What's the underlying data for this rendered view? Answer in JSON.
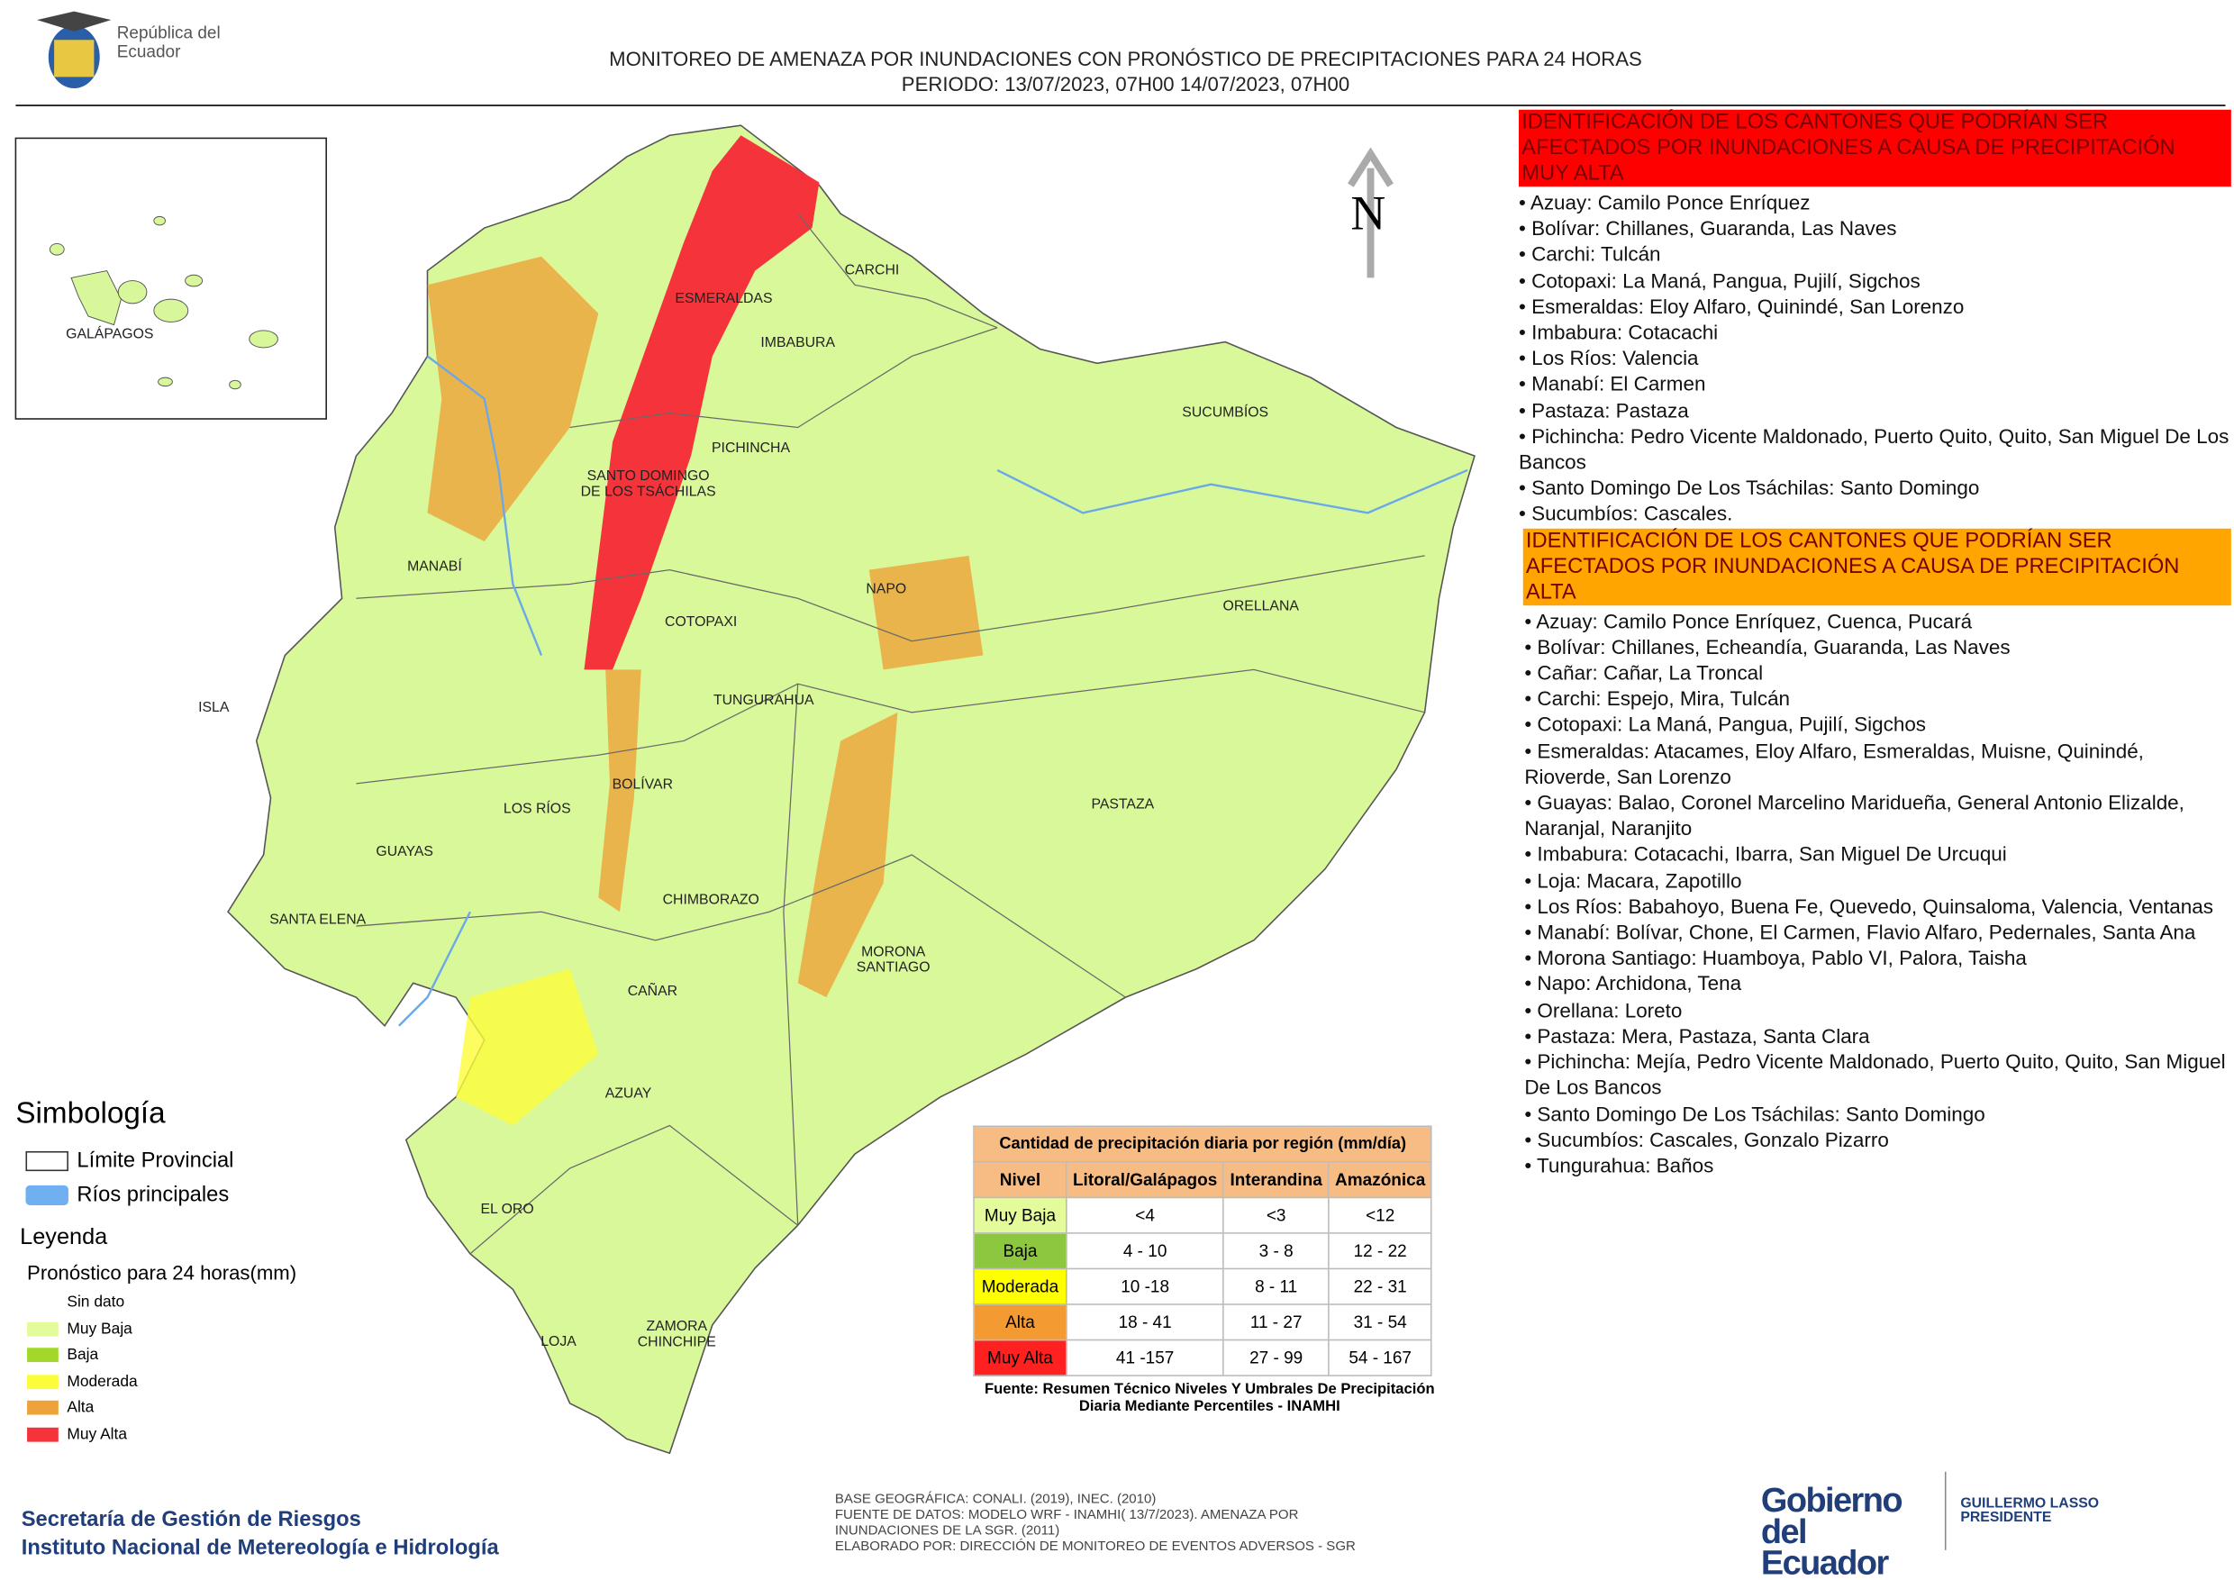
{
  "header": {
    "logo_text": "República del Ecuador",
    "title": "MONITOREO DE AMENAZA POR INUNDACIONES  CON PRONÓSTICO DE  PRECIPITACIONES PARA 24 HORAS",
    "period": "PERIODO: 13/07/2023, 07H00 14/07/2023, 07H00"
  },
  "map": {
    "north": "N",
    "inset_label": "GALÁPAGOS",
    "provinces": [
      "CARCHI",
      "ESMERALDAS",
      "IMBABURA",
      "SUCUMBÍOS",
      "PICHINCHA",
      "SANTO DOMINGO DE LOS TSÁCHILAS",
      "MANABÍ",
      "NAPO",
      "ORELLANA",
      "COTOPAXI",
      "ISLA",
      "TUNGURAHUA",
      "BOLÍVAR",
      "LOS RÍOS",
      "PASTAZA",
      "GUAYAS",
      "CHIMBORAZO",
      "SANTA ELENA",
      "MORONA SANTIAGO",
      "CAÑAR",
      "AZUAY",
      "EL ORO",
      "ZAMORA CHINCHIPE",
      "LOJA"
    ]
  },
  "legend": {
    "symbology_title": "Simbología",
    "symbols": [
      "Límite Provincial",
      "Ríos principales"
    ],
    "legend_title": "Leyenda",
    "subtitle": "Pronóstico para 24 horas(mm)",
    "items": [
      {
        "label": "Sin dato",
        "color": "#ffffff"
      },
      {
        "label": "Muy Baja",
        "color": "#e4fb9c"
      },
      {
        "label": "Baja",
        "color": "#a3d82b"
      },
      {
        "label": "Moderada",
        "color": "#fcfc3a"
      },
      {
        "label": "Alta",
        "color": "#eda33a"
      },
      {
        "label": "Muy Alta",
        "color": "#f5333a"
      }
    ]
  },
  "table": {
    "title": "Cantidad de precipitación diaria por región (mm/día)",
    "header": [
      "Nivel",
      "Litoral/Galápagos",
      "Interandina",
      "Amazónica"
    ],
    "rows": [
      [
        "Muy Baja",
        "<4",
        "<3",
        "<12"
      ],
      [
        "Baja",
        "4 - 10",
        "3 - 8",
        "12 - 22"
      ],
      [
        "Moderada",
        "10 -18",
        "8 - 11",
        "22 - 31"
      ],
      [
        "Alta",
        "18 - 41",
        "11 - 27",
        "31 - 54"
      ],
      [
        "Muy Alta",
        "41 -157",
        "27 - 99",
        "54 - 167"
      ]
    ],
    "row_colors": [
      "#e4fb9c",
      "#8dc63f",
      "#ffff00",
      "#f39a32",
      "#ff2020"
    ],
    "source": "Fuente: Resumen Técnico Niveles Y Umbrales De Precipitación Diaria Mediante Percentiles - INAMHI"
  },
  "lists": [
    {
      "heading": "IDENTIFICACIÓN DE LOS CANTONES QUE PODRÍAN SER AFECTADOS POR INUNDACIONES  A CAUSA DE PRECIPITACIÓN MUY ALTA",
      "color": "#ff0000",
      "items": [
        "• Azuay: Camilo Ponce Enríquez",
        "• Bolívar: Chillanes, Guaranda, Las Naves",
        "• Carchi: Tulcán",
        "• Cotopaxi: La Maná, Pangua, Pujilí, Sigchos",
        "• Esmeraldas: Eloy Alfaro, Quinindé, San Lorenzo",
        "• Imbabura: Cotacachi",
        "• Los Ríos: Valencia",
        "• Manabí: El Carmen",
        "• Pastaza: Pastaza",
        "• Pichincha: Pedro Vicente Maldonado, Puerto Quito, Quito, San Miguel De Los Bancos",
        "• Santo Domingo De Los Tsáchilas: Santo Domingo",
        "• Sucumbíos: Cascales."
      ]
    },
    {
      "heading": "IDENTIFICACIÓN DE LOS CANTONES QUE  PODRÍAN SER AFECTADOS POR INUNDACIONES  A CAUSA DE PRECIPITACIÓN ALTA",
      "color": "#ffa500",
      "items": [
        "• Azuay: Camilo Ponce Enríquez, Cuenca, Pucará",
        "• Bolívar: Chillanes, Echeandía, Guaranda, Las Naves",
        "• Cañar: Cañar, La Troncal",
        "• Carchi: Espejo, Mira, Tulcán",
        "• Cotopaxi: La Maná, Pangua, Pujilí, Sigchos",
        "• Esmeraldas: Atacames, Eloy Alfaro, Esmeraldas, Muisne, Quinindé, Rioverde, San Lorenzo",
        "• Guayas: Balao, Coronel Marcelino Maridueña, General Antonio Elizalde, Naranjal, Naranjito",
        "• Imbabura: Cotacachi, Ibarra, San Miguel De Urcuqui",
        "• Loja: Macara, Zapotillo",
        "• Los Ríos: Babahoyo, Buena Fe, Quevedo, Quinsaloma, Valencia, Ventanas",
        "• Manabí: Bolívar, Chone, El Carmen, Flavio Alfaro, Pedernales, Santa Ana",
        "• Morona Santiago: Huamboya, Pablo VI, Palora, Taisha",
        "• Napo: Archidona, Tena",
        "• Orellana: Loreto",
        "• Pastaza: Mera, Pastaza, Santa Clara",
        "• Pichincha: Mejía, Pedro Vicente Maldonado, Puerto Quito, Quito, San Miguel De Los Bancos",
        "• Santo Domingo De Los Tsáchilas: Santo Domingo",
        "• Sucumbíos: Cascales, Gonzalo Pizarro",
        "• Tungurahua: Baños"
      ]
    }
  ],
  "footer": {
    "institutions": [
      "Secretaría de Gestión de Riesgos",
      "Instituto Nacional de Metereología e Hidrología"
    ],
    "credits": [
      "BASE GEOGRÁFICA: CONALI. (2019), INEC. (2010)",
      "FUENTE DE DATOS: MODELO WRF - INAMHI( 13/7/2023).  AMENAZA POR INUNDACIONES DE LA SGR. (2011)",
      "ELABORADO POR: DIRECCIÓN DE MONITOREO DE EVENTOS ADVERSOS - SGR"
    ],
    "gov_logo": "Gobierno del Ecuador",
    "president": "GUILLERMO LASSO PRESIDENTE"
  }
}
